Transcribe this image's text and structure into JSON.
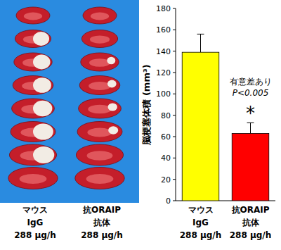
{
  "chart_data": {
    "type": "bar",
    "y_label": "脳梗塞体積 (mm³)",
    "categories": [
      "マウス\nIgG\n288 μg/h",
      "抗ORAIP\n抗体\n288 μg/h"
    ],
    "values": [
      139,
      63
    ],
    "errors": [
      17,
      10
    ],
    "colors": [
      "#ffff00",
      "#ff0000"
    ],
    "ylim": [
      0,
      180
    ],
    "yticks": [
      0,
      20,
      40,
      60,
      80,
      100,
      120,
      140,
      160,
      180
    ],
    "grid": false,
    "annotations": [
      "有意差あり",
      "P<0.005",
      "*"
    ]
  }
}
